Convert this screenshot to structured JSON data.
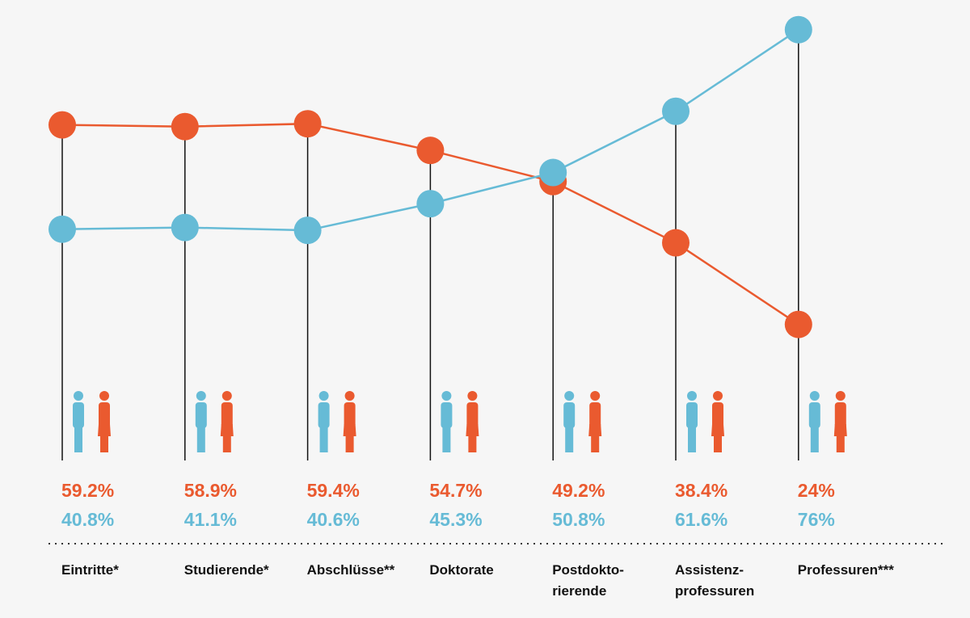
{
  "chart_data": {
    "type": "line",
    "categories": [
      "Eintritte*",
      "Studierende*",
      "Abschlüsse**",
      "Doktorate",
      "Postdokto-\nrierende",
      "Assistenz-\nprofessuren",
      "Professuren***"
    ],
    "series": [
      {
        "color": "#ea5a2f",
        "values": [
          59.2,
          58.9,
          59.4,
          54.7,
          49.2,
          38.4,
          24
        ],
        "value_labels": [
          "59.2%",
          "58.9%",
          "59.4%",
          "54.7%",
          "49.2%",
          "38.4%",
          "24%"
        ]
      },
      {
        "color": "#66bbd6",
        "values": [
          40.8,
          41.1,
          40.6,
          45.3,
          50.8,
          61.6,
          76
        ],
        "value_labels": [
          "40.8%",
          "41.1%",
          "40.6%",
          "45.3%",
          "50.8%",
          "61.6%",
          "76%"
        ]
      }
    ]
  }
}
